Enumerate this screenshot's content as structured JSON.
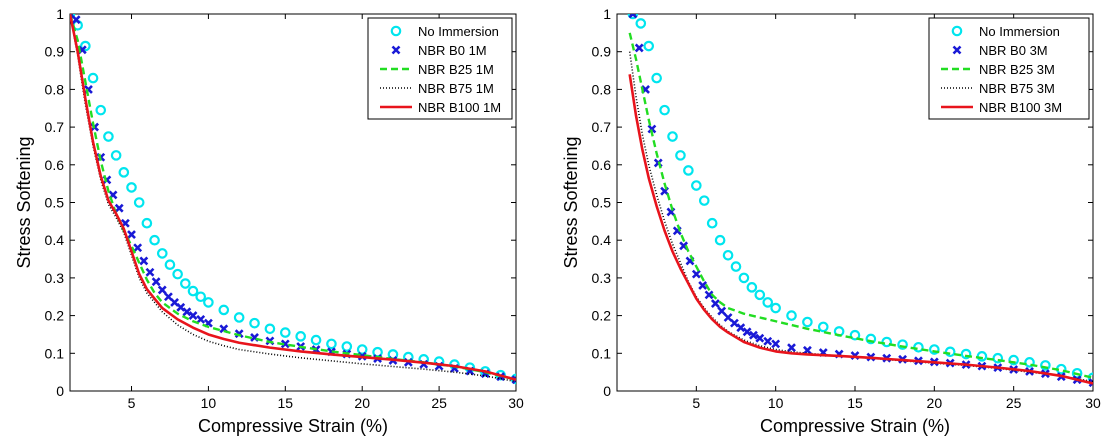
{
  "chart_data": [
    {
      "type": "line",
      "xlabel": "Compressive Strain (%)",
      "ylabel": "Stress Softening",
      "xlim": [
        1,
        30
      ],
      "ylim": [
        0,
        1
      ],
      "xticks": [
        5,
        10,
        15,
        20,
        25,
        30
      ],
      "yticks": [
        0,
        0.1,
        0.2,
        0.3,
        0.4,
        0.5,
        0.6,
        0.7,
        0.8,
        0.9,
        1
      ],
      "legend_position": "top-right",
      "series": [
        {
          "name": "No Immersion",
          "style": "circle",
          "color": "#00e5ee",
          "x": [
            1,
            1.5,
            2,
            2.5,
            3,
            3.5,
            4,
            4.5,
            5,
            5.5,
            6,
            6.5,
            7,
            7.5,
            8,
            8.5,
            9,
            9.5,
            10,
            11,
            12,
            13,
            14,
            15,
            16,
            17,
            18,
            19,
            20,
            21,
            22,
            23,
            24,
            25,
            26,
            27,
            28,
            29,
            30
          ],
          "y": [
            1,
            0.97,
            0.915,
            0.83,
            0.745,
            0.675,
            0.625,
            0.58,
            0.54,
            0.5,
            0.445,
            0.4,
            0.365,
            0.335,
            0.31,
            0.285,
            0.265,
            0.25,
            0.235,
            0.215,
            0.195,
            0.18,
            0.165,
            0.155,
            0.145,
            0.135,
            0.125,
            0.118,
            0.11,
            0.103,
            0.097,
            0.09,
            0.084,
            0.078,
            0.07,
            0.062,
            0.052,
            0.042,
            0.032
          ]
        },
        {
          "name": "NBR B0 1M",
          "style": "x",
          "color": "#1a1ad6",
          "x": [
            1,
            1.4,
            1.8,
            2.2,
            2.6,
            3,
            3.4,
            3.8,
            4.2,
            4.6,
            5,
            5.4,
            5.8,
            6.2,
            6.6,
            7,
            7.4,
            7.8,
            8.2,
            8.6,
            9,
            9.5,
            10,
            11,
            12,
            13,
            14,
            15,
            16,
            17,
            18,
            19,
            20,
            21,
            22,
            23,
            24,
            25,
            26,
            27,
            28,
            29,
            30
          ],
          "y": [
            1,
            0.985,
            0.905,
            0.8,
            0.7,
            0.62,
            0.56,
            0.52,
            0.485,
            0.445,
            0.415,
            0.38,
            0.345,
            0.315,
            0.29,
            0.268,
            0.25,
            0.235,
            0.222,
            0.21,
            0.2,
            0.19,
            0.18,
            0.165,
            0.152,
            0.142,
            0.133,
            0.125,
            0.118,
            0.11,
            0.104,
            0.098,
            0.092,
            0.086,
            0.081,
            0.076,
            0.071,
            0.066,
            0.06,
            0.053,
            0.046,
            0.038,
            0.03
          ]
        },
        {
          "name": "NBR B25 1M",
          "style": "dashed",
          "color": "#22dd22",
          "x": [
            1,
            1.5,
            2,
            2.5,
            3,
            3.5,
            4,
            4.5,
            5,
            5.5,
            6,
            6.5,
            7,
            8,
            9,
            10,
            12,
            14,
            16,
            18,
            20,
            22,
            24,
            26,
            28,
            30
          ],
          "y": [
            1,
            0.93,
            0.82,
            0.71,
            0.61,
            0.53,
            0.47,
            0.425,
            0.385,
            0.34,
            0.295,
            0.26,
            0.235,
            0.205,
            0.185,
            0.17,
            0.148,
            0.13,
            0.117,
            0.105,
            0.095,
            0.085,
            0.076,
            0.065,
            0.05,
            0.03
          ]
        },
        {
          "name": "NBR B75 1M",
          "style": "dotted",
          "color": "#000000",
          "x": [
            1,
            1.5,
            2,
            2.5,
            3,
            3.5,
            4,
            4.5,
            5,
            5.5,
            6,
            6.5,
            7,
            8,
            9,
            10,
            11,
            12,
            14,
            16,
            18,
            20,
            22,
            24,
            26,
            28,
            30
          ],
          "y": [
            1,
            0.89,
            0.76,
            0.65,
            0.56,
            0.495,
            0.46,
            0.42,
            0.36,
            0.3,
            0.26,
            0.235,
            0.21,
            0.175,
            0.15,
            0.132,
            0.12,
            0.11,
            0.098,
            0.088,
            0.08,
            0.072,
            0.065,
            0.058,
            0.05,
            0.04,
            0.025
          ]
        },
        {
          "name": "NBR B100 1M",
          "style": "solid",
          "color": "#e8141c",
          "x": [
            1,
            1.5,
            2,
            2.5,
            3,
            3.5,
            4,
            4.5,
            5,
            5.5,
            6,
            6.5,
            7,
            8,
            9,
            10,
            11,
            12,
            14,
            16,
            18,
            20,
            22,
            24,
            26,
            28,
            30
          ],
          "y": [
            1,
            0.9,
            0.775,
            0.66,
            0.57,
            0.505,
            0.47,
            0.43,
            0.37,
            0.31,
            0.27,
            0.245,
            0.22,
            0.19,
            0.168,
            0.15,
            0.138,
            0.128,
            0.115,
            0.105,
            0.097,
            0.09,
            0.083,
            0.075,
            0.066,
            0.052,
            0.03
          ]
        }
      ]
    },
    {
      "type": "line",
      "xlabel": "Compressive Strain (%)",
      "ylabel": "Stress Softening",
      "xlim": [
        0,
        30
      ],
      "ylim": [
        0,
        1
      ],
      "xticks": [
        5,
        10,
        15,
        20,
        25,
        30
      ],
      "yticks": [
        0,
        0.1,
        0.2,
        0.3,
        0.4,
        0.5,
        0.6,
        0.7,
        0.8,
        0.9,
        1
      ],
      "legend_position": "top-right",
      "series": [
        {
          "name": "No Immersion",
          "style": "circle",
          "color": "#00e5ee",
          "x": [
            1,
            1.5,
            2,
            2.5,
            3,
            3.5,
            4,
            4.5,
            5,
            5.5,
            6,
            6.5,
            7,
            7.5,
            8,
            8.5,
            9,
            9.5,
            10,
            11,
            12,
            13,
            14,
            15,
            16,
            17,
            18,
            19,
            20,
            21,
            22,
            23,
            24,
            25,
            26,
            27,
            28,
            29,
            30
          ],
          "y": [
            1,
            0.975,
            0.915,
            0.83,
            0.745,
            0.675,
            0.625,
            0.585,
            0.545,
            0.505,
            0.445,
            0.4,
            0.36,
            0.33,
            0.3,
            0.275,
            0.255,
            0.235,
            0.22,
            0.2,
            0.183,
            0.17,
            0.158,
            0.148,
            0.138,
            0.13,
            0.123,
            0.116,
            0.11,
            0.104,
            0.098,
            0.092,
            0.087,
            0.082,
            0.076,
            0.068,
            0.058,
            0.047,
            0.035
          ]
        },
        {
          "name": "NBR B0 3M",
          "style": "x",
          "color": "#1a1ad6",
          "x": [
            1,
            1.4,
            1.8,
            2.2,
            2.6,
            3,
            3.4,
            3.8,
            4.2,
            4.6,
            5,
            5.4,
            5.8,
            6.2,
            6.6,
            7,
            7.4,
            7.8,
            8.2,
            8.6,
            9,
            9.5,
            10,
            11,
            12,
            13,
            14,
            15,
            16,
            17,
            18,
            19,
            20,
            21,
            22,
            23,
            24,
            25,
            26,
            27,
            28,
            29,
            30
          ],
          "y": [
            1,
            0.91,
            0.8,
            0.695,
            0.605,
            0.53,
            0.475,
            0.425,
            0.385,
            0.345,
            0.31,
            0.28,
            0.255,
            0.232,
            0.212,
            0.195,
            0.18,
            0.168,
            0.157,
            0.148,
            0.14,
            0.132,
            0.125,
            0.115,
            0.108,
            0.102,
            0.098,
            0.094,
            0.09,
            0.087,
            0.084,
            0.08,
            0.077,
            0.074,
            0.07,
            0.066,
            0.062,
            0.057,
            0.052,
            0.046,
            0.038,
            0.03,
            0.022
          ]
        },
        {
          "name": "NBR B25 3M",
          "style": "dashed",
          "color": "#22dd22",
          "x": [
            0.8,
            1.2,
            1.6,
            2,
            2.5,
            3,
            3.5,
            4,
            4.5,
            5,
            5.5,
            6,
            6.5,
            7,
            8,
            9,
            10,
            12,
            14,
            16,
            18,
            20,
            22,
            24,
            26,
            28,
            30
          ],
          "y": [
            0.95,
            0.88,
            0.8,
            0.72,
            0.63,
            0.55,
            0.48,
            0.42,
            0.37,
            0.33,
            0.29,
            0.255,
            0.235,
            0.22,
            0.205,
            0.195,
            0.185,
            0.165,
            0.148,
            0.132,
            0.118,
            0.105,
            0.093,
            0.082,
            0.07,
            0.055,
            0.035
          ]
        },
        {
          "name": "NBR B75 3M",
          "style": "dotted",
          "color": "#000000",
          "x": [
            0.8,
            1.2,
            1.6,
            2,
            2.5,
            3,
            3.5,
            4,
            4.5,
            5,
            5.5,
            6,
            6.5,
            7,
            8,
            9,
            10,
            11,
            12,
            14,
            16,
            18,
            20,
            22,
            24,
            26,
            28,
            30
          ],
          "y": [
            0.9,
            0.78,
            0.68,
            0.6,
            0.52,
            0.45,
            0.39,
            0.34,
            0.29,
            0.25,
            0.22,
            0.195,
            0.175,
            0.158,
            0.135,
            0.12,
            0.11,
            0.104,
            0.1,
            0.093,
            0.087,
            0.08,
            0.074,
            0.068,
            0.06,
            0.05,
            0.04,
            0.025
          ]
        },
        {
          "name": "NBR B100 3M",
          "style": "solid",
          "color": "#e8141c",
          "x": [
            0.8,
            1.2,
            1.6,
            2,
            2.5,
            3,
            3.5,
            4,
            4.5,
            5,
            5.5,
            6,
            6.5,
            7,
            8,
            9,
            10,
            11,
            12,
            14,
            16,
            18,
            20,
            22,
            24,
            26,
            28,
            30
          ],
          "y": [
            0.84,
            0.73,
            0.64,
            0.565,
            0.49,
            0.425,
            0.37,
            0.325,
            0.285,
            0.245,
            0.215,
            0.19,
            0.17,
            0.155,
            0.13,
            0.115,
            0.105,
            0.1,
            0.097,
            0.093,
            0.088,
            0.082,
            0.076,
            0.07,
            0.062,
            0.053,
            0.04,
            0.02
          ]
        }
      ]
    }
  ]
}
